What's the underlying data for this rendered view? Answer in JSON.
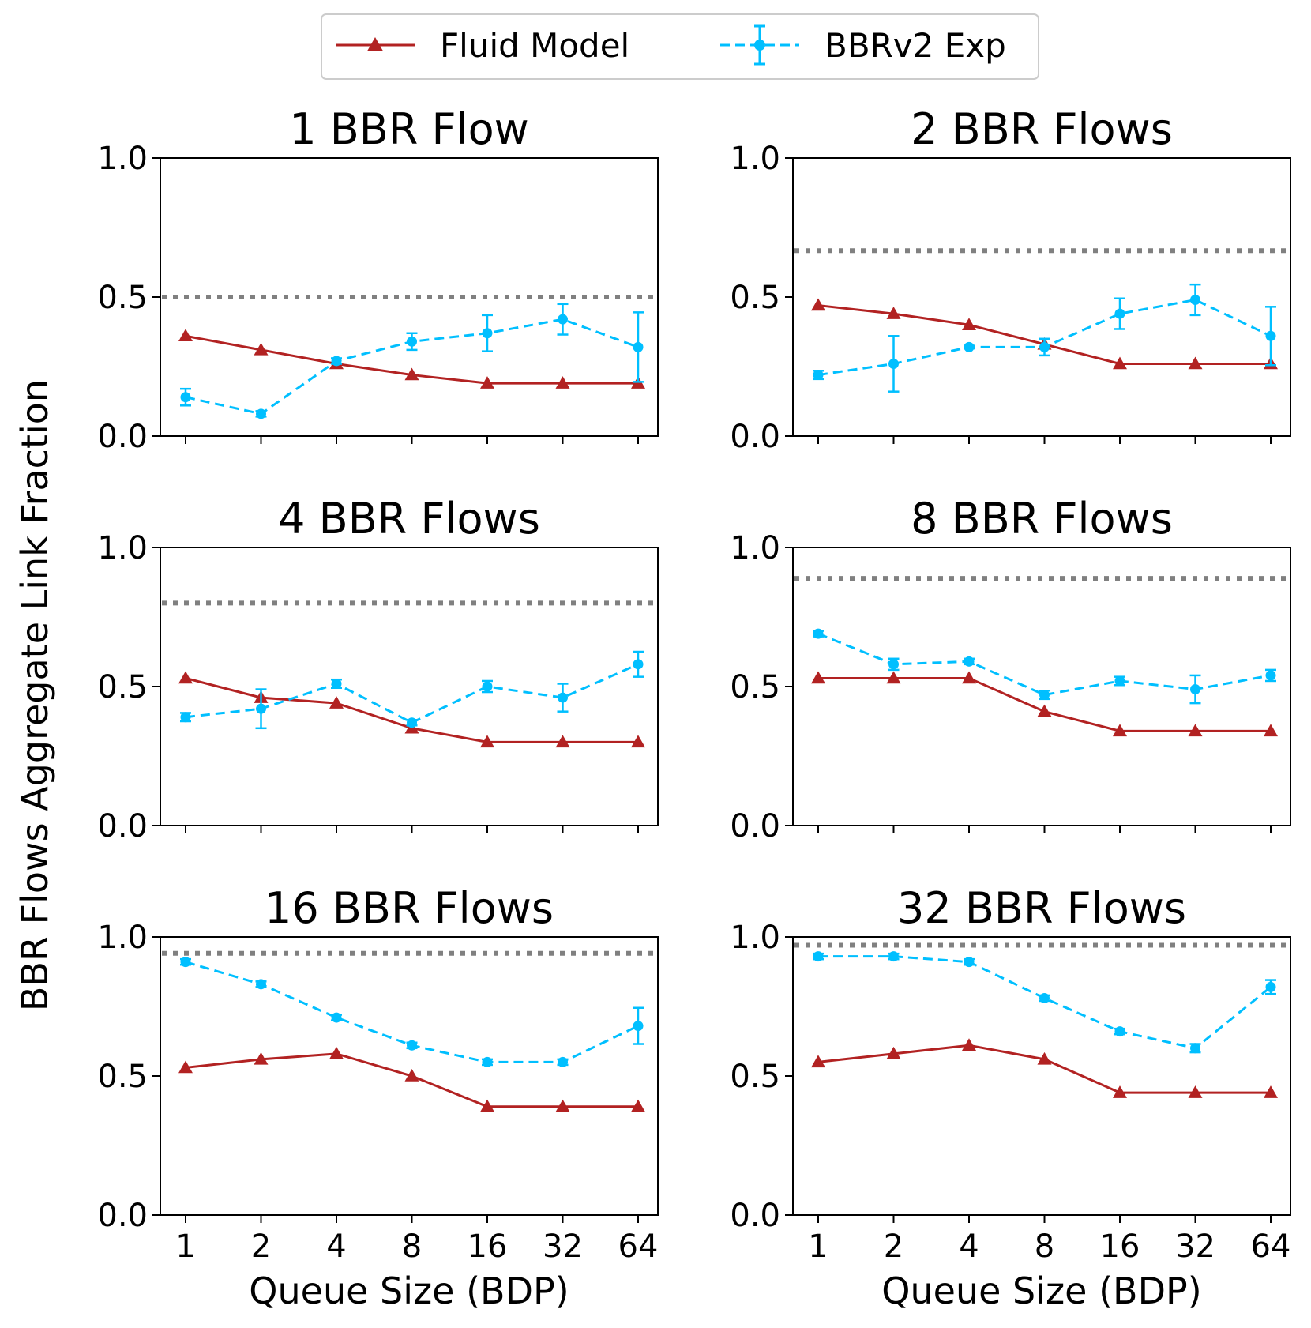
{
  "figure": {
    "ylabel": "BBR Flows Aggregate Link Fraction",
    "xlabel": "Queue Size (BDP)",
    "colors": {
      "fluid": "#b22222",
      "exp": "#00bfff",
      "reference": "#808080"
    }
  },
  "legend": {
    "placement": "top-center",
    "items": [
      {
        "label": "Fluid Model",
        "marker": "triangle",
        "line": "solid"
      },
      {
        "label": "BBRv2 Exp",
        "marker": "circle-errorbar",
        "line": "dashed"
      }
    ]
  },
  "chart_data": [
    {
      "type": "line",
      "title": "1 BBR Flow",
      "categories": [
        "1",
        "2",
        "4",
        "8",
        "16",
        "32",
        "64"
      ],
      "ylim": [
        0,
        1.0
      ],
      "yticks": [
        "0.0",
        "0.5",
        "1.0"
      ],
      "reference": 0.5,
      "series": [
        {
          "name": "Fluid Model",
          "values": [
            0.36,
            0.31,
            0.26,
            0.22,
            0.19,
            0.19,
            0.19
          ]
        },
        {
          "name": "BBRv2 Exp",
          "values": [
            0.14,
            0.08,
            0.27,
            0.34,
            0.37,
            0.42,
            0.32
          ],
          "errors": [
            0.03,
            0.01,
            0.01,
            0.03,
            0.065,
            0.055,
            0.125
          ]
        }
      ]
    },
    {
      "type": "line",
      "title": "2 BBR Flows",
      "categories": [
        "1",
        "2",
        "4",
        "8",
        "16",
        "32",
        "64"
      ],
      "ylim": [
        0,
        1.0
      ],
      "yticks": [
        "0.0",
        "0.5",
        "1.0"
      ],
      "reference": 0.667,
      "series": [
        {
          "name": "Fluid Model",
          "values": [
            0.47,
            0.44,
            0.4,
            0.33,
            0.26,
            0.26,
            0.26
          ]
        },
        {
          "name": "BBRv2 Exp",
          "values": [
            0.22,
            0.26,
            0.32,
            0.32,
            0.44,
            0.49,
            0.36
          ],
          "errors": [
            0.015,
            0.1,
            0.005,
            0.03,
            0.055,
            0.055,
            0.105
          ]
        }
      ]
    },
    {
      "type": "line",
      "title": "4 BBR Flows",
      "categories": [
        "1",
        "2",
        "4",
        "8",
        "16",
        "32",
        "64"
      ],
      "ylim": [
        0,
        1.0
      ],
      "yticks": [
        "0.0",
        "0.5",
        "1.0"
      ],
      "reference": 0.8,
      "series": [
        {
          "name": "Fluid Model",
          "values": [
            0.53,
            0.46,
            0.44,
            0.35,
            0.3,
            0.3,
            0.3
          ]
        },
        {
          "name": "BBRv2 Exp",
          "values": [
            0.39,
            0.42,
            0.51,
            0.37,
            0.5,
            0.46,
            0.58
          ],
          "errors": [
            0.015,
            0.07,
            0.015,
            0.01,
            0.02,
            0.05,
            0.045
          ]
        }
      ]
    },
    {
      "type": "line",
      "title": "8 BBR Flows",
      "categories": [
        "1",
        "2",
        "4",
        "8",
        "16",
        "32",
        "64"
      ],
      "ylim": [
        0,
        1.0
      ],
      "yticks": [
        "0.0",
        "0.5",
        "1.0"
      ],
      "reference": 0.889,
      "series": [
        {
          "name": "Fluid Model",
          "values": [
            0.53,
            0.53,
            0.53,
            0.41,
            0.34,
            0.34,
            0.34
          ]
        },
        {
          "name": "BBRv2 Exp",
          "values": [
            0.69,
            0.58,
            0.59,
            0.47,
            0.52,
            0.49,
            0.54
          ],
          "errors": [
            0.01,
            0.02,
            0.01,
            0.015,
            0.015,
            0.05,
            0.02
          ]
        }
      ]
    },
    {
      "type": "line",
      "title": "16 BBR Flows",
      "categories": [
        "1",
        "2",
        "4",
        "8",
        "16",
        "32",
        "64"
      ],
      "ylim": [
        0,
        1.0
      ],
      "yticks": [
        "0.0",
        "0.5",
        "1.0"
      ],
      "reference": 0.941,
      "series": [
        {
          "name": "Fluid Model",
          "values": [
            0.53,
            0.56,
            0.58,
            0.5,
            0.39,
            0.39,
            0.39
          ]
        },
        {
          "name": "BBRv2 Exp",
          "values": [
            0.91,
            0.83,
            0.71,
            0.61,
            0.55,
            0.55,
            0.68
          ],
          "errors": [
            0.01,
            0.01,
            0.01,
            0.01,
            0.01,
            0.01,
            0.065
          ]
        }
      ]
    },
    {
      "type": "line",
      "title": "32 BBR Flows",
      "categories": [
        "1",
        "2",
        "4",
        "8",
        "16",
        "32",
        "64"
      ],
      "ylim": [
        0,
        1.0
      ],
      "yticks": [
        "0.0",
        "0.5",
        "1.0"
      ],
      "reference": 0.97,
      "series": [
        {
          "name": "Fluid Model",
          "values": [
            0.55,
            0.58,
            0.61,
            0.56,
            0.44,
            0.44,
            0.44
          ]
        },
        {
          "name": "BBRv2 Exp",
          "values": [
            0.93,
            0.93,
            0.91,
            0.78,
            0.66,
            0.6,
            0.82
          ],
          "errors": [
            0.01,
            0.01,
            0.01,
            0.01,
            0.01,
            0.015,
            0.025
          ]
        }
      ]
    }
  ]
}
